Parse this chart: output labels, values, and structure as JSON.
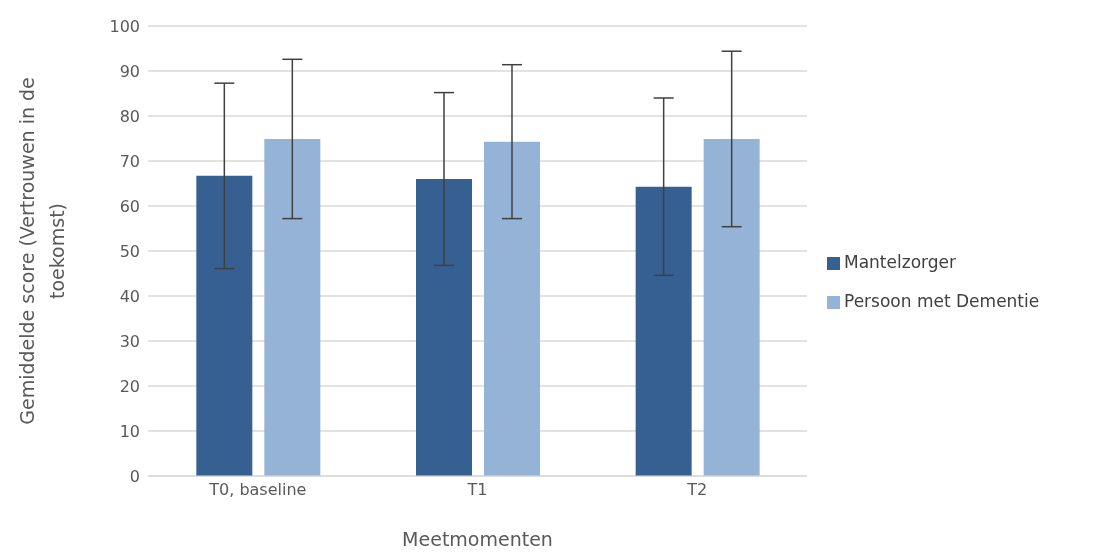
{
  "chart_data": {
    "type": "bar",
    "xlabel": "Meetmomenten",
    "ylabel": "Gemiddelde score (Vertrouwen in de toekomst)",
    "categories": [
      "T0, baseline",
      "T1",
      "T2"
    ],
    "series": [
      {
        "name": "Mantelzorger",
        "color": "#366092",
        "values": [
          66.7,
          66.0,
          64.3
        ],
        "errors": [
          20.6,
          19.2,
          19.7
        ]
      },
      {
        "name": "Persoon met Dementie",
        "color": "#95b3d7",
        "values": [
          74.9,
          74.3,
          74.9
        ],
        "errors": [
          17.7,
          17.1,
          19.5
        ]
      }
    ],
    "ylim": [
      0,
      100
    ],
    "yticks": [
      0,
      10,
      20,
      30,
      40,
      50,
      60,
      70,
      80,
      90,
      100
    ],
    "grid": "y",
    "legend": "right"
  }
}
